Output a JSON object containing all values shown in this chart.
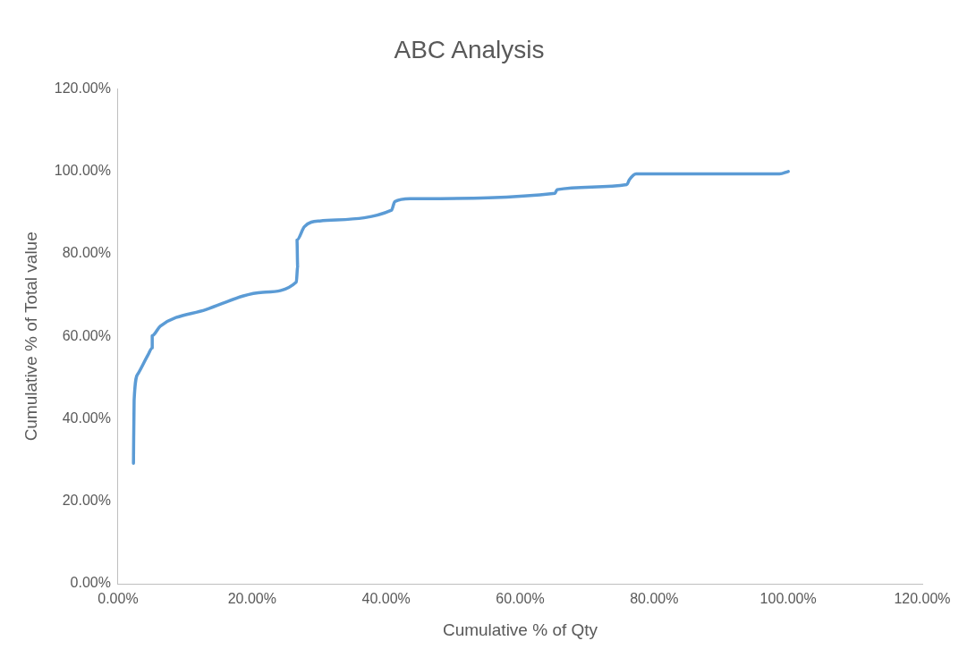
{
  "chart_data": {
    "type": "line",
    "title": "ABC Analysis",
    "xlabel": "Cumulative % of Qty",
    "ylabel": "Cumulative % of Total value",
    "x": [
      2.3,
      2.4,
      3.0,
      4.5,
      5.1,
      5.1,
      6.3,
      13.1,
      21.6,
      26.6,
      26.8,
      26.7,
      27.8,
      30.1,
      40.8,
      41.3,
      43.6,
      65.2,
      65.5,
      75.9,
      76.3,
      77.3,
      98.7,
      100
    ],
    "values": [
      29.2,
      44.5,
      51.0,
      55.6,
      57.2,
      60.2,
      62.5,
      66.5,
      70.7,
      73.2,
      76.9,
      83.4,
      86.6,
      88.0,
      90.6,
      92.7,
      93.4,
      94.7,
      95.6,
      96.8,
      98.0,
      99.4,
      99.4,
      100
    ],
    "color": "#5b9bd5",
    "xlim": [
      0,
      120
    ],
    "xticks": [
      {
        "value": 0,
        "label": "0.00%"
      },
      {
        "value": 20,
        "label": "20.00%"
      },
      {
        "value": 40,
        "label": "40.00%"
      },
      {
        "value": 60,
        "label": "60.00%"
      },
      {
        "value": 80,
        "label": "80.00%"
      },
      {
        "value": 100,
        "label": "100.00%"
      },
      {
        "value": 120,
        "label": "120.00%"
      }
    ],
    "ylim": [
      0,
      120
    ],
    "yticks": [
      {
        "value": 0,
        "label": "0.00%"
      },
      {
        "value": 20,
        "label": "20.00%"
      },
      {
        "value": 40,
        "label": "40.00%"
      },
      {
        "value": 60,
        "label": "60.00%"
      },
      {
        "value": 80,
        "label": "80.00%"
      },
      {
        "value": 100,
        "label": "100.00%"
      },
      {
        "value": 120,
        "label": "120.00%"
      }
    ],
    "grid": false,
    "legend": false,
    "marker": "none",
    "line_style": "solid"
  }
}
